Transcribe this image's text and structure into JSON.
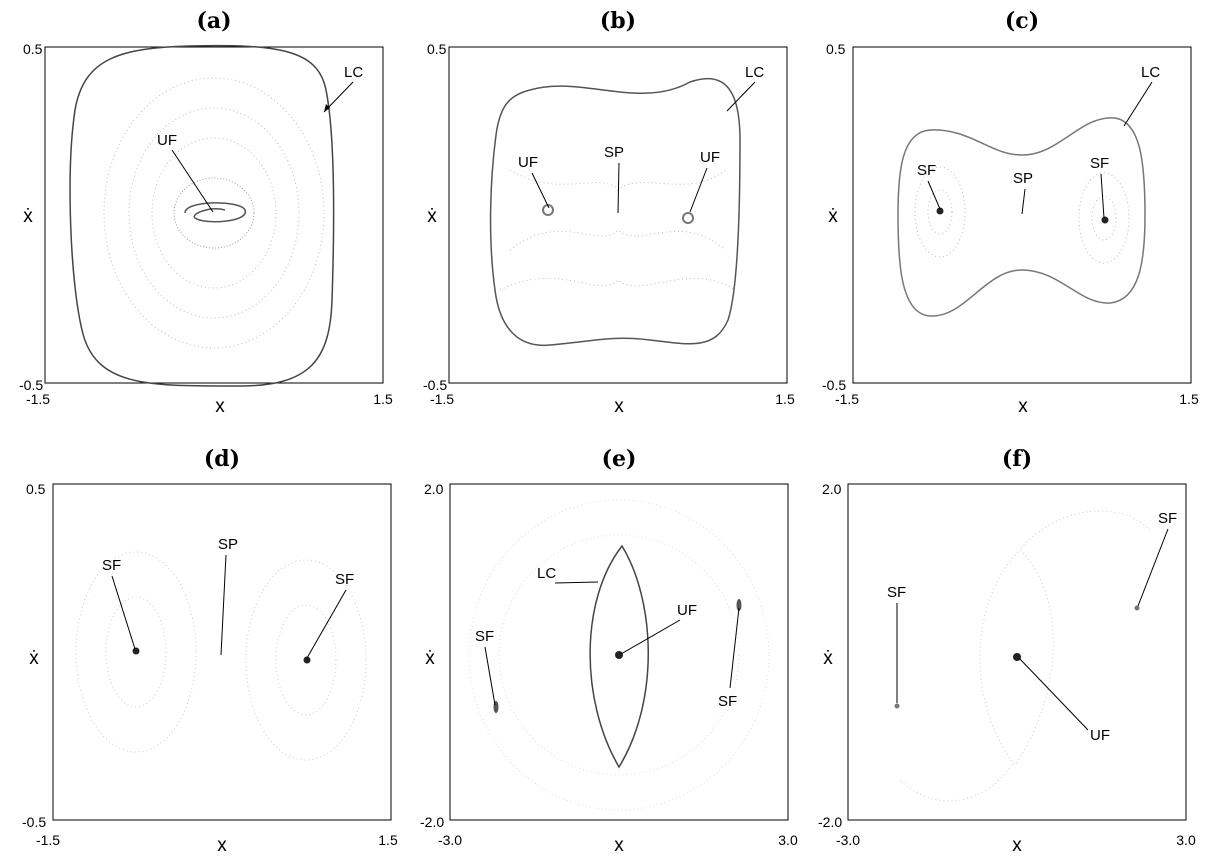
{
  "figure": {
    "panels": [
      {
        "id": "a",
        "title": "(a)",
        "xlabel": "x",
        "ylabel": "ẋ",
        "xticks": [
          "-1.5",
          "1.5"
        ],
        "yticks": [
          "0.5",
          "-0.5"
        ]
      },
      {
        "id": "b",
        "title": "(b)",
        "xlabel": "x",
        "ylabel": "ẋ",
        "xticks": [
          "-1.5",
          "1.5"
        ],
        "yticks": [
          "0.5",
          "-0.5"
        ]
      },
      {
        "id": "c",
        "title": "(c)",
        "xlabel": "x",
        "ylabel": "ẋ",
        "xticks": [
          "-1.5",
          "1.5"
        ],
        "yticks": [
          "0.5",
          "-0.5"
        ]
      },
      {
        "id": "d",
        "title": "(d)",
        "xlabel": "x",
        "ylabel": "ẋ",
        "xticks": [
          "-1.5",
          "1.5"
        ],
        "yticks": [
          "0.5",
          "-0.5"
        ]
      },
      {
        "id": "e",
        "title": "(e)",
        "xlabel": "x",
        "ylabel": "ẋ",
        "xticks": [
          "-3.0",
          "3.0"
        ],
        "yticks": [
          "2.0",
          "-2.0"
        ]
      },
      {
        "id": "f",
        "title": "(f)",
        "xlabel": "x",
        "ylabel": "ẋ",
        "xticks": [
          "-3.0",
          "3.0"
        ],
        "yticks": [
          "2.0",
          "-2.0"
        ]
      }
    ]
  },
  "chart_data": [
    {
      "type": "scatter",
      "title": "(a)",
      "xlabel": "x",
      "ylabel": "ẋ",
      "xlim": [
        -1.5,
        1.5
      ],
      "ylim": [
        -0.5,
        0.5
      ],
      "grid": false,
      "annotations": [
        {
          "text": "LC"
        },
        {
          "text": "UF"
        }
      ]
    },
    {
      "type": "scatter",
      "title": "(b)",
      "xlabel": "x",
      "ylabel": "ẋ",
      "xlim": [
        -1.5,
        1.5
      ],
      "ylim": [
        -0.5,
        0.5
      ],
      "grid": false,
      "annotations": [
        {
          "text": "LC"
        },
        {
          "text": "UF"
        },
        {
          "text": "SP"
        },
        {
          "text": "UF"
        }
      ]
    },
    {
      "type": "scatter",
      "title": "(c)",
      "xlabel": "x",
      "ylabel": "ẋ",
      "xlim": [
        -1.5,
        1.5
      ],
      "ylim": [
        -0.5,
        0.5
      ],
      "grid": false,
      "annotations": [
        {
          "text": "LC"
        },
        {
          "text": "SF"
        },
        {
          "text": "SP"
        },
        {
          "text": "SF"
        }
      ]
    },
    {
      "type": "scatter",
      "title": "(d)",
      "xlabel": "x",
      "ylabel": "ẋ",
      "xlim": [
        -1.5,
        1.5
      ],
      "ylim": [
        -0.5,
        0.5
      ],
      "grid": false,
      "annotations": [
        {
          "text": "SF"
        },
        {
          "text": "SP"
        },
        {
          "text": "SF"
        }
      ]
    },
    {
      "type": "scatter",
      "title": "(e)",
      "xlabel": "x",
      "ylabel": "ẋ",
      "xlim": [
        -3.0,
        3.0
      ],
      "ylim": [
        -2.0,
        2.0
      ],
      "grid": false,
      "annotations": [
        {
          "text": "LC"
        },
        {
          "text": "UF"
        },
        {
          "text": "SF"
        },
        {
          "text": "SF"
        }
      ]
    },
    {
      "type": "scatter",
      "title": "(f)",
      "xlabel": "x",
      "ylabel": "ẋ",
      "xlim": [
        -3.0,
        3.0
      ],
      "ylim": [
        -2.0,
        2.0
      ],
      "grid": false,
      "annotations": [
        {
          "text": "SF"
        },
        {
          "text": "SF"
        },
        {
          "text": "UF"
        }
      ]
    }
  ]
}
